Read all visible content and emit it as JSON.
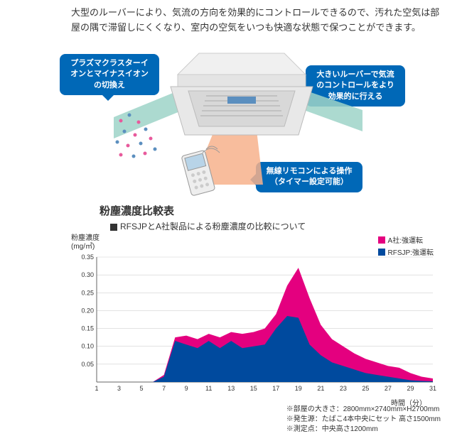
{
  "intro": "大型のルーバーにより、気流の方向を効果的にコントロールできるので、汚れた空気は部屋の隅で滞留しにくくなり、室内の空気をいつも快適な状態で保つことができます。",
  "callouts": {
    "c1": "プラズマクラスターイオンとマイナスイオンの切換え",
    "c2": "大きいルーバーで気流のコントロールをより効果的に行える",
    "c3": "無線リモコンによる操作（タイマー設定可能）"
  },
  "illustration": {
    "unit_body_color": "#f0f0f0",
    "unit_edge_color": "#cccccc",
    "louver_color": "#d8d8d8",
    "panel_color": "#5b8fbf",
    "airflow_left_color": "#9ed4c8",
    "airflow_right_color": "#9ed4c8",
    "airflow_front_color": "#f7b28c",
    "ion_colors": [
      "#e85a9c",
      "#5b8fbf"
    ],
    "remote_body": "#eeeeee",
    "remote_screen": "#b8d4e8",
    "callout_bg": "#0068b7",
    "callout_text": "#ffffff"
  },
  "chart": {
    "title": "粉塵濃度比較表",
    "subtitle": "RFSJPとA社製品による粉塵濃度の比較について",
    "ylabel_line1": "粉塵濃度",
    "ylabel_line2": "(mg/㎡)",
    "xlabel": "時間（分）",
    "type": "area",
    "background_color": "#ffffff",
    "grid_color": "#d0d0d0",
    "axis_color": "#666666",
    "ylim": [
      0,
      0.35
    ],
    "ytick_step": 0.05,
    "yticks": [
      "0.35",
      "0.30",
      "0.25",
      "0.20",
      "0.15",
      "0.10",
      "0.05"
    ],
    "xticks": [
      1,
      3,
      5,
      7,
      9,
      11,
      13,
      15,
      17,
      19,
      21,
      23,
      25,
      27,
      29,
      31
    ],
    "title_fontsize": 15,
    "label_fontsize": 10,
    "legend_position": "top-right",
    "series": [
      {
        "name": "A社:強運転",
        "color": "#e4007f",
        "opacity": 1.0,
        "x": [
          1,
          2,
          3,
          4,
          5,
          6,
          7,
          8,
          9,
          10,
          11,
          12,
          13,
          14,
          15,
          16,
          17,
          18,
          19,
          20,
          21,
          22,
          23,
          24,
          25,
          26,
          27,
          28,
          29,
          30,
          31
        ],
        "y": [
          0,
          0,
          0,
          0,
          0,
          0,
          0.02,
          0.125,
          0.13,
          0.12,
          0.135,
          0.125,
          0.14,
          0.135,
          0.14,
          0.15,
          0.19,
          0.27,
          0.32,
          0.235,
          0.16,
          0.12,
          0.1,
          0.08,
          0.065,
          0.055,
          0.045,
          0.04,
          0.025,
          0.015,
          0.01
        ]
      },
      {
        "name": "RFSJP:強運転",
        "color": "#004a9e",
        "opacity": 1.0,
        "x": [
          1,
          2,
          3,
          4,
          5,
          6,
          7,
          8,
          9,
          10,
          11,
          12,
          13,
          14,
          15,
          16,
          17,
          18,
          19,
          20,
          21,
          22,
          23,
          24,
          25,
          26,
          27,
          28,
          29,
          30,
          31
        ],
        "y": [
          0,
          0,
          0,
          0,
          0,
          0,
          0.015,
          0.115,
          0.105,
          0.095,
          0.115,
          0.095,
          0.115,
          0.095,
          0.1,
          0.105,
          0.15,
          0.185,
          0.18,
          0.105,
          0.075,
          0.055,
          0.045,
          0.035,
          0.025,
          0.02,
          0.015,
          0.01,
          0.005,
          0.003,
          0.002
        ]
      }
    ],
    "footnotes": [
      "※部屋の大きさ：2800mm×2740mm×H2700mm",
      "※発生源：たばこ4本中央にセット 高さ1500mm",
      "※測定点：中央高さ1200mm"
    ]
  }
}
